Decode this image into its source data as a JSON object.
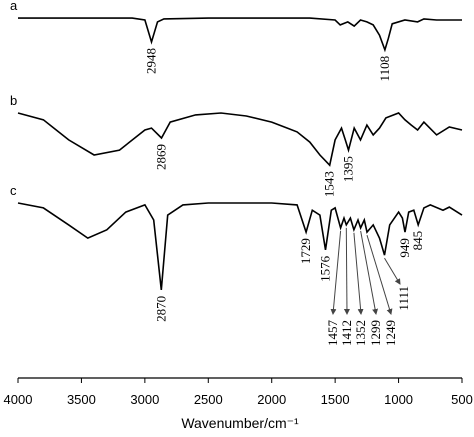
{
  "chart_data": {
    "type": "line",
    "xlabel": "Wavenumber/cm⁻¹",
    "xlim": [
      4000,
      500
    ],
    "xticks": [
      4000,
      3500,
      3000,
      2500,
      2000,
      1500,
      1000,
      500
    ],
    "ylim": [
      0,
      100
    ],
    "series": [
      {
        "name": "a",
        "color": "#000000",
        "x": [
          4000,
          3500,
          3100,
          3000,
          2948,
          2900,
          2850,
          2500,
          2000,
          1700,
          1500,
          1460,
          1400,
          1350,
          1300,
          1250,
          1200,
          1150,
          1108,
          1080,
          1050,
          950,
          850,
          800,
          700,
          500
        ],
        "values": [
          95.2,
          95.2,
          95.2,
          94.7,
          88.9,
          94.2,
          95.0,
          95.2,
          95.2,
          95.2,
          94.7,
          93.4,
          94.2,
          93.1,
          94.7,
          94.2,
          93.4,
          90.7,
          86.8,
          89.9,
          93.7,
          94.7,
          94.2,
          95.0,
          94.7,
          94.7
        ],
        "peaks": [
          2948,
          1108
        ]
      },
      {
        "name": "b",
        "color": "#000000",
        "x": [
          4000,
          3800,
          3600,
          3400,
          3200,
          3000,
          2948,
          2869,
          2800,
          2600,
          2400,
          2200,
          2000,
          1800,
          1700,
          1620,
          1543,
          1500,
          1450,
          1420,
          1395,
          1350,
          1300,
          1250,
          1200,
          1150,
          1100,
          1000,
          950,
          900,
          850,
          800,
          700,
          600,
          500
        ],
        "values": [
          70.1,
          68.3,
          63.0,
          59.0,
          60.3,
          65.6,
          66.1,
          63.5,
          67.7,
          69.6,
          70.1,
          69.3,
          67.7,
          65.1,
          62.4,
          59.0,
          56.3,
          63.0,
          66.1,
          63.0,
          60.3,
          66.1,
          63.0,
          66.9,
          64.3,
          66.1,
          68.8,
          70.1,
          68.3,
          66.9,
          65.6,
          67.7,
          64.3,
          66.4,
          65.6
        ],
        "peaks": [
          2869,
          1543,
          1395
        ]
      },
      {
        "name": "c",
        "color": "#000000",
        "x": [
          4000,
          3800,
          3600,
          3450,
          3300,
          3150,
          3000,
          2930,
          2870,
          2820,
          2700,
          2500,
          2000,
          1800,
          1729,
          1680,
          1620,
          1576,
          1530,
          1500,
          1457,
          1430,
          1412,
          1380,
          1352,
          1320,
          1299,
          1270,
          1249,
          1200,
          1150,
          1111,
          1070,
          1000,
          970,
          949,
          920,
          880,
          845,
          800,
          750,
          650,
          600,
          500
        ],
        "values": [
          46.3,
          45.0,
          40.5,
          37.0,
          39.2,
          43.9,
          45.8,
          41.8,
          23.3,
          43.1,
          45.8,
          46.3,
          46.3,
          45.8,
          38.6,
          44.4,
          43.1,
          33.9,
          44.4,
          45.0,
          39.7,
          42.3,
          40.5,
          42.3,
          39.2,
          41.8,
          39.7,
          41.8,
          38.6,
          40.5,
          37.0,
          32.5,
          40.5,
          43.9,
          42.3,
          38.6,
          43.9,
          44.4,
          40.5,
          45.0,
          45.8,
          44.4,
          45.2,
          43.1
        ],
        "peaks": [
          2870,
          1729,
          1576,
          949,
          845
        ],
        "arrow_peaks": [
          1111,
          1457,
          1412,
          1352,
          1299,
          1249
        ]
      }
    ]
  }
}
